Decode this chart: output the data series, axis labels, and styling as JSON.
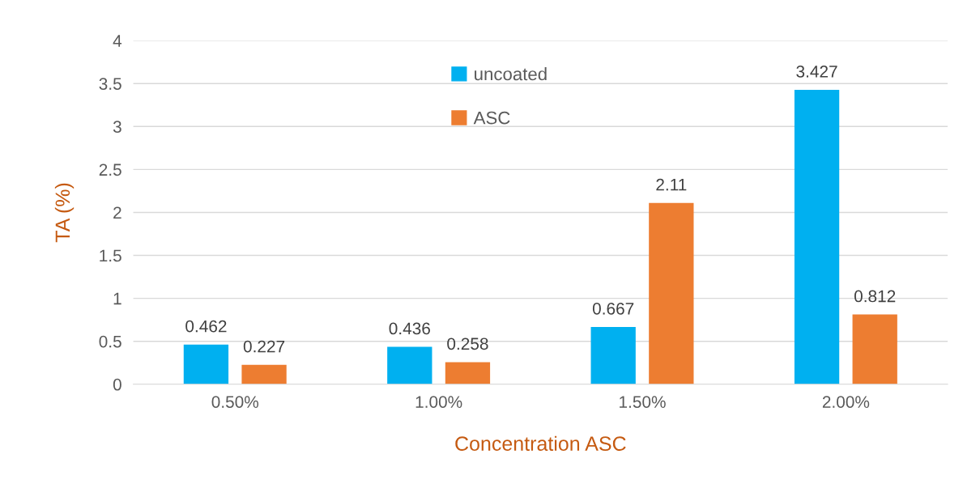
{
  "chart_data": {
    "type": "bar",
    "xlabel": "Concentration ASC",
    "ylabel": "TA (%)",
    "categories": [
      "0.50%",
      "1.00%",
      "1.50%",
      "2.00%"
    ],
    "series": [
      {
        "name": "uncoated",
        "color": "#00b0f0",
        "values": [
          0.462,
          0.436,
          0.667,
          3.427
        ]
      },
      {
        "name": "ASC",
        "color": "#ed7d31",
        "values": [
          0.227,
          0.258,
          2.11,
          0.812
        ]
      }
    ],
    "ylim": [
      0,
      4
    ],
    "yticks": [
      0,
      0.5,
      1,
      1.5,
      2,
      2.5,
      3,
      3.5,
      4
    ],
    "grid": "y",
    "legend": "top",
    "data_labels": true
  }
}
